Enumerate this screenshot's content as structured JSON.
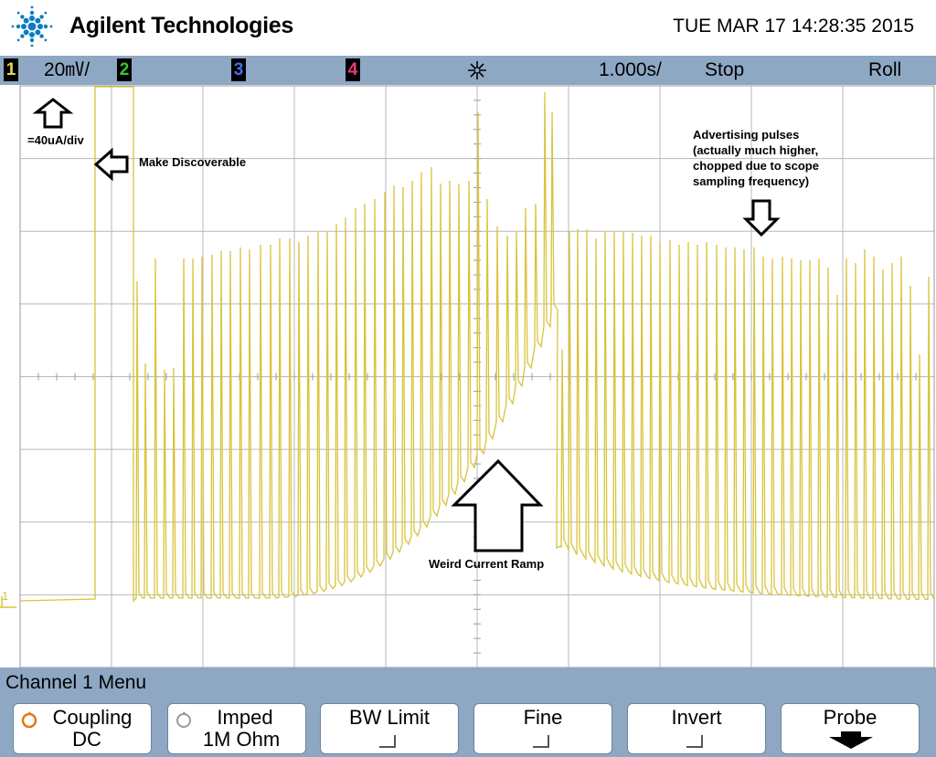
{
  "header": {
    "brand": "Agilent Technologies",
    "datetime": "TUE MAR 17 14:28:35 2015"
  },
  "statusbar": {
    "channels": [
      {
        "label": "1",
        "color": "#e8d64a"
      },
      {
        "label": "2",
        "color": "#34c634"
      },
      {
        "label": "3",
        "color": "#4a6ee8"
      },
      {
        "label": "4",
        "color": "#e8387a"
      }
    ],
    "ch1_scale": "20㎷/",
    "timebase": "1.000s/",
    "run_state": "Stop",
    "mode": "Roll",
    "trigger_icon": "trigger-burst-icon"
  },
  "screen": {
    "trace_color": "#d8c43a",
    "ground_marker": "1",
    "annotations": {
      "scale_note": "=40uA/div",
      "discoverable": "Make Discoverable",
      "advertising": [
        "Advertising pulses",
        "(actually much higher,",
        "chopped due to scope",
        "sampling frequency)"
      ],
      "ramp": "Weird Current Ramp"
    }
  },
  "menu": {
    "title": "Channel 1  Menu",
    "softkeys": [
      {
        "line1": "Coupling",
        "line2": "DC",
        "knob": true,
        "knob_active": true
      },
      {
        "line1": "Imped",
        "line2": "1M Ohm",
        "knob": true,
        "knob_active": false
      },
      {
        "line1": "BW Limit",
        "line2": "",
        "checkbox": true
      },
      {
        "line1": "Fine",
        "line2": "",
        "checkbox": true
      },
      {
        "line1": "Invert",
        "line2": "",
        "checkbox": true
      },
      {
        "line1": "Probe",
        "line2": "",
        "submenu_arrow": true
      }
    ]
  }
}
